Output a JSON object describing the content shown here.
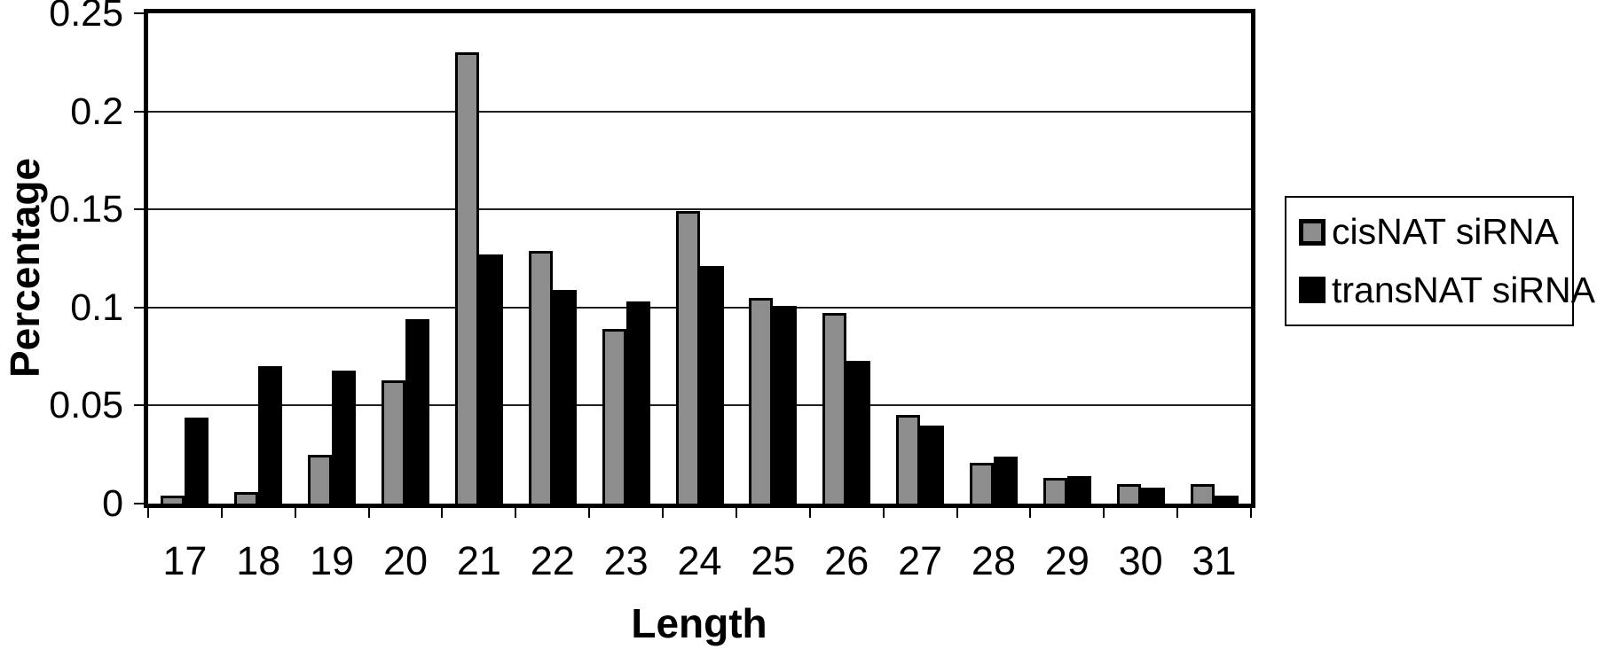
{
  "chart_data": {
    "type": "bar",
    "title": "",
    "xlabel": "Length",
    "ylabel": "Percentage",
    "categories": [
      "17",
      "18",
      "19",
      "20",
      "21",
      "22",
      "23",
      "24",
      "25",
      "26",
      "27",
      "28",
      "29",
      "30",
      "31"
    ],
    "series": [
      {
        "name": "cisNAT siRNA",
        "color": "#8d8d8d",
        "values": [
          0.004,
          0.006,
          0.025,
          0.063,
          0.23,
          0.129,
          0.089,
          0.149,
          0.105,
          0.097,
          0.045,
          0.021,
          0.013,
          0.01,
          0.01
        ]
      },
      {
        "name": "transNAT siRNA",
        "color": "#000000",
        "values": [
          0.044,
          0.07,
          0.068,
          0.094,
          0.127,
          0.109,
          0.103,
          0.121,
          0.101,
          0.073,
          0.04,
          0.024,
          0.014,
          0.008,
          0.004
        ]
      }
    ],
    "ylim": [
      0,
      0.25
    ],
    "yticks": [
      {
        "value": 0,
        "label": "0"
      },
      {
        "value": 0.05,
        "label": "0.05"
      },
      {
        "value": 0.1,
        "label": "0.1"
      },
      {
        "value": 0.15,
        "label": "0.15"
      },
      {
        "value": 0.2,
        "label": "0.2"
      },
      {
        "value": 0.25,
        "label": "0.25"
      }
    ],
    "grid": true,
    "legend_position": "right",
    "bar_border_color": "#000000",
    "background": "#ffffff"
  }
}
